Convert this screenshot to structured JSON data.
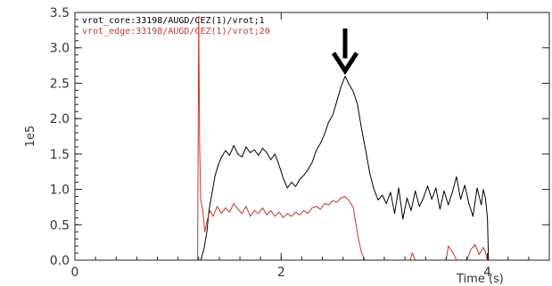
{
  "chart_data": {
    "type": "line",
    "title": "",
    "xlabel": "Time (s)",
    "ylabel": "1e5",
    "xlim": [
      0,
      4.6
    ],
    "ylim": [
      0,
      3.5
    ],
    "x_ticks": [
      {
        "value": 0,
        "label": "0"
      },
      {
        "value": 2,
        "label": "2"
      },
      {
        "value": 4,
        "label": "4"
      }
    ],
    "y_ticks": [
      {
        "value": 0.0,
        "label": "0.0"
      },
      {
        "value": 0.5,
        "label": "0.5"
      },
      {
        "value": 1.0,
        "label": "1.0"
      },
      {
        "value": 1.5,
        "label": "1.5"
      },
      {
        "value": 2.0,
        "label": "2.0"
      },
      {
        "value": 2.5,
        "label": "2.5"
      },
      {
        "value": 3.0,
        "label": "3.0"
      },
      {
        "value": 3.5,
        "label": "3.5"
      }
    ],
    "legend_position": "top-left",
    "grid": false,
    "annotation": {
      "type": "down-arrow",
      "x": 2.62,
      "y": 2.6,
      "color": "#000000"
    },
    "series": [
      {
        "name": "vrot_core:33198/AUGD/CEZ(1)/vrot;1",
        "color": "#000000",
        "points": [
          [
            0.0,
            0.0
          ],
          [
            1.2,
            0.0
          ],
          [
            1.22,
            0.0
          ],
          [
            1.25,
            0.15
          ],
          [
            1.28,
            0.4
          ],
          [
            1.3,
            0.7
          ],
          [
            1.33,
            0.95
          ],
          [
            1.36,
            1.2
          ],
          [
            1.39,
            1.35
          ],
          [
            1.42,
            1.45
          ],
          [
            1.46,
            1.55
          ],
          [
            1.5,
            1.48
          ],
          [
            1.54,
            1.62
          ],
          [
            1.58,
            1.5
          ],
          [
            1.62,
            1.46
          ],
          [
            1.66,
            1.6
          ],
          [
            1.7,
            1.52
          ],
          [
            1.74,
            1.56
          ],
          [
            1.78,
            1.48
          ],
          [
            1.82,
            1.58
          ],
          [
            1.86,
            1.52
          ],
          [
            1.9,
            1.42
          ],
          [
            1.94,
            1.5
          ],
          [
            1.98,
            1.34
          ],
          [
            2.02,
            1.16
          ],
          [
            2.06,
            1.02
          ],
          [
            2.1,
            1.1
          ],
          [
            2.14,
            1.04
          ],
          [
            2.18,
            1.14
          ],
          [
            2.22,
            1.2
          ],
          [
            2.26,
            1.28
          ],
          [
            2.3,
            1.38
          ],
          [
            2.34,
            1.55
          ],
          [
            2.38,
            1.65
          ],
          [
            2.42,
            1.78
          ],
          [
            2.46,
            1.95
          ],
          [
            2.5,
            2.05
          ],
          [
            2.54,
            2.25
          ],
          [
            2.58,
            2.45
          ],
          [
            2.62,
            2.6
          ],
          [
            2.66,
            2.48
          ],
          [
            2.7,
            2.38
          ],
          [
            2.74,
            2.2
          ],
          [
            2.78,
            1.85
          ],
          [
            2.82,
            1.55
          ],
          [
            2.86,
            1.22
          ],
          [
            2.9,
            1.0
          ],
          [
            2.94,
            0.85
          ],
          [
            2.98,
            0.92
          ],
          [
            3.02,
            0.8
          ],
          [
            3.06,
            0.96
          ],
          [
            3.1,
            0.66
          ],
          [
            3.14,
            1.02
          ],
          [
            3.18,
            0.58
          ],
          [
            3.22,
            0.88
          ],
          [
            3.26,
            0.7
          ],
          [
            3.3,
            0.98
          ],
          [
            3.34,
            0.76
          ],
          [
            3.38,
            0.88
          ],
          [
            3.42,
            1.05
          ],
          [
            3.46,
            0.86
          ],
          [
            3.5,
            1.02
          ],
          [
            3.54,
            0.72
          ],
          [
            3.58,
            0.98
          ],
          [
            3.62,
            0.78
          ],
          [
            3.66,
            0.96
          ],
          [
            3.7,
            1.18
          ],
          [
            3.74,
            0.86
          ],
          [
            3.78,
            1.06
          ],
          [
            3.82,
            0.8
          ],
          [
            3.86,
            0.62
          ],
          [
            3.9,
            1.02
          ],
          [
            3.94,
            0.78
          ],
          [
            3.96,
            1.0
          ],
          [
            3.98,
            0.88
          ],
          [
            4.0,
            0.6
          ],
          [
            4.01,
            0.0
          ],
          [
            4.6,
            0.0
          ]
        ]
      },
      {
        "name": "vrot_edge:33198/AUGD/CEZ(1)/vrot;20",
        "color": "#c0392b",
        "points": [
          [
            0.0,
            0.0
          ],
          [
            1.19,
            0.0
          ],
          [
            1.2,
            3.45
          ],
          [
            1.21,
            1.6
          ],
          [
            1.22,
            0.85
          ],
          [
            1.24,
            0.7
          ],
          [
            1.26,
            0.4
          ],
          [
            1.28,
            0.55
          ],
          [
            1.31,
            0.7
          ],
          [
            1.34,
            0.62
          ],
          [
            1.38,
            0.76
          ],
          [
            1.42,
            0.66
          ],
          [
            1.46,
            0.74
          ],
          [
            1.5,
            0.68
          ],
          [
            1.54,
            0.8
          ],
          [
            1.58,
            0.72
          ],
          [
            1.62,
            0.66
          ],
          [
            1.66,
            0.76
          ],
          [
            1.7,
            0.62
          ],
          [
            1.74,
            0.7
          ],
          [
            1.78,
            0.66
          ],
          [
            1.82,
            0.74
          ],
          [
            1.86,
            0.64
          ],
          [
            1.9,
            0.7
          ],
          [
            1.94,
            0.62
          ],
          [
            1.98,
            0.68
          ],
          [
            2.02,
            0.6
          ],
          [
            2.06,
            0.66
          ],
          [
            2.1,
            0.62
          ],
          [
            2.14,
            0.68
          ],
          [
            2.18,
            0.64
          ],
          [
            2.22,
            0.7
          ],
          [
            2.26,
            0.66
          ],
          [
            2.3,
            0.74
          ],
          [
            2.34,
            0.76
          ],
          [
            2.38,
            0.72
          ],
          [
            2.42,
            0.8
          ],
          [
            2.46,
            0.78
          ],
          [
            2.5,
            0.84
          ],
          [
            2.54,
            0.82
          ],
          [
            2.58,
            0.88
          ],
          [
            2.62,
            0.9
          ],
          [
            2.66,
            0.84
          ],
          [
            2.7,
            0.74
          ],
          [
            2.72,
            0.55
          ],
          [
            2.75,
            0.3
          ],
          [
            2.78,
            0.1
          ],
          [
            2.81,
            0.0
          ],
          [
            3.25,
            0.0
          ],
          [
            3.27,
            0.1
          ],
          [
            3.3,
            0.0
          ],
          [
            3.6,
            0.0
          ],
          [
            3.62,
            0.2
          ],
          [
            3.66,
            0.12
          ],
          [
            3.7,
            0.0
          ],
          [
            3.8,
            0.0
          ],
          [
            3.84,
            0.15
          ],
          [
            3.88,
            0.22
          ],
          [
            3.92,
            0.08
          ],
          [
            3.96,
            0.18
          ],
          [
            3.98,
            0.12
          ],
          [
            4.0,
            0.0
          ],
          [
            4.6,
            0.0
          ]
        ]
      }
    ]
  }
}
